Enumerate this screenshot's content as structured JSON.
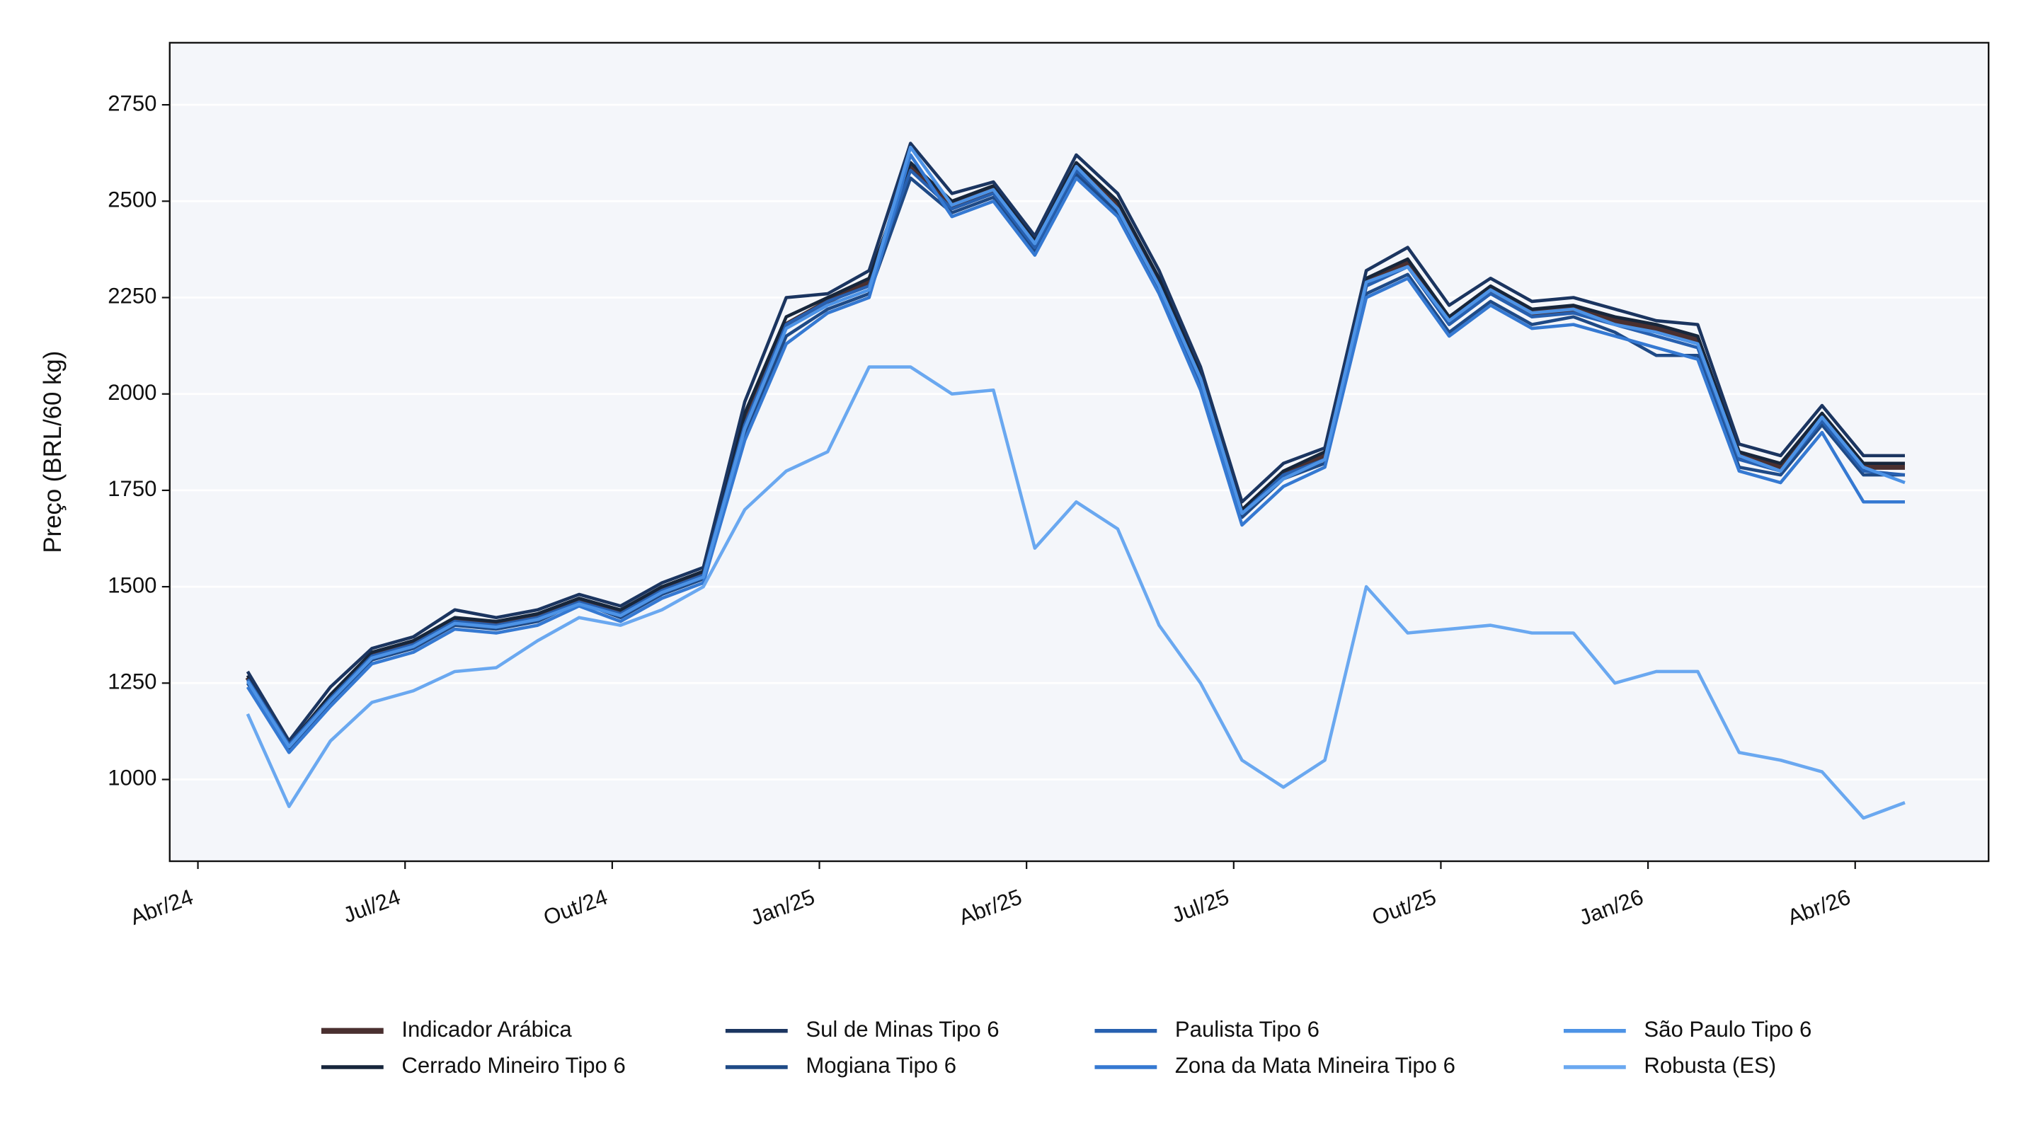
{
  "chart_data": {
    "type": "line",
    "y_label": "Preço (BRL/60 kg)",
    "xlim": [
      2024.216,
      2026.411
    ],
    "ylim": [
      788,
      2911
    ],
    "xticks": [
      {
        "value": 2024.25,
        "label": "Abr/24"
      },
      {
        "value": 2024.5,
        "label": "Jul/24"
      },
      {
        "value": 2024.75,
        "label": "Out/24"
      },
      {
        "value": 2025.0,
        "label": "Jan/25"
      },
      {
        "value": 2025.25,
        "label": "Abr/25"
      },
      {
        "value": 2025.5,
        "label": "Jul/25"
      },
      {
        "value": 2025.75,
        "label": "Out/25"
      },
      {
        "value": 2026.0,
        "label": "Jan/26"
      },
      {
        "value": 2026.25,
        "label": "Abr/26"
      }
    ],
    "yticks": [
      1000,
      1250,
      1500,
      1750,
      2000,
      2250,
      2500,
      2750
    ],
    "grid": true,
    "legend": "bottom",
    "x": [
      2024.31,
      2024.36,
      2024.41,
      2024.46,
      2024.51,
      2024.56,
      2024.61,
      2024.66,
      2024.71,
      2024.76,
      2024.81,
      2024.86,
      2024.91,
      2024.96,
      2025.01,
      2025.06,
      2025.11,
      2025.16,
      2025.21,
      2025.26,
      2025.31,
      2025.36,
      2025.41,
      2025.46,
      2025.51,
      2025.56,
      2025.61,
      2025.66,
      2025.71,
      2025.76,
      2025.81,
      2025.86,
      2025.91,
      2025.96,
      2026.01,
      2026.06,
      2026.11,
      2026.16,
      2026.21,
      2026.26,
      2026.31
    ],
    "series": [
      {
        "name": "Indicador Arábica",
        "color": "#4a3030",
        "width": 4,
        "values": [
          1265,
          1085,
          1210,
          1320,
          1350,
          1410,
          1400,
          1420,
          1465,
          1430,
          1490,
          1530,
          1930,
          2180,
          2240,
          2290,
          2590,
          2490,
          2530,
          2390,
          2590,
          2490,
          2290,
          2040,
          1690,
          1790,
          1840,
          2290,
          2340,
          2190,
          2270,
          2210,
          2220,
          2190,
          2170,
          2140,
          1840,
          1810,
          1940,
          1810,
          1810
        ]
      },
      {
        "name": "Cerrado Mineiro Tipo 6",
        "color": "#17263b",
        "width": 2.5,
        "values": [
          1270,
          1090,
          1220,
          1330,
          1360,
          1420,
          1410,
          1430,
          1470,
          1440,
          1500,
          1540,
          1950,
          2200,
          2250,
          2300,
          2600,
          2500,
          2540,
          2400,
          2600,
          2500,
          2300,
          2050,
          1700,
          1800,
          1850,
          2300,
          2350,
          2200,
          2280,
          2220,
          2230,
          2200,
          2180,
          2150,
          1850,
          1820,
          1950,
          1820,
          1820
        ]
      },
      {
        "name": "Sul de Minas Tipo 6",
        "color": "#1b3560",
        "width": 2.5,
        "values": [
          1280,
          1100,
          1240,
          1340,
          1370,
          1440,
          1420,
          1440,
          1480,
          1450,
          1510,
          1550,
          1980,
          2250,
          2260,
          2320,
          2650,
          2520,
          2550,
          2410,
          2620,
          2520,
          2320,
          2070,
          1720,
          1820,
          1860,
          2320,
          2380,
          2230,
          2300,
          2240,
          2250,
          2220,
          2190,
          2180,
          1870,
          1840,
          1970,
          1840,
          1840
        ]
      },
      {
        "name": "Mogiana Tipo 6",
        "color": "#1f4a86",
        "width": 2.5,
        "values": [
          1250,
          1080,
          1200,
          1310,
          1340,
          1400,
          1390,
          1410,
          1460,
          1420,
          1480,
          1520,
          1900,
          2150,
          2220,
          2260,
          2560,
          2470,
          2510,
          2370,
          2570,
          2470,
          2270,
          2020,
          1680,
          1780,
          1820,
          2260,
          2310,
          2160,
          2240,
          2180,
          2200,
          2160,
          2100,
          2100,
          1810,
          1790,
          1920,
          1790,
          1790
        ]
      },
      {
        "name": "Paulista Tipo 6",
        "color": "#2760b0",
        "width": 2.5,
        "values": [
          1260,
          1090,
          1210,
          1320,
          1350,
          1410,
          1400,
          1420,
          1460,
          1430,
          1490,
          1530,
          1920,
          2180,
          2240,
          2280,
          2580,
          2480,
          2520,
          2380,
          2580,
          2480,
          2280,
          2030,
          1690,
          1790,
          1830,
          2280,
          2330,
          2180,
          2260,
          2200,
          2210,
          2180,
          2150,
          2120,
          1830,
          1800,
          1930,
          1800,
          1790
        ]
      },
      {
        "name": "Zona da Mata Mineira Tipo 6",
        "color": "#3579d2",
        "width": 2.5,
        "values": [
          1240,
          1070,
          1190,
          1300,
          1330,
          1390,
          1380,
          1400,
          1450,
          1410,
          1470,
          1510,
          1880,
          2130,
          2210,
          2250,
          2620,
          2460,
          2500,
          2360,
          2560,
          2460,
          2260,
          2010,
          1660,
          1760,
          1810,
          2250,
          2300,
          2150,
          2230,
          2170,
          2180,
          2150,
          2120,
          2090,
          1800,
          1770,
          1900,
          1720,
          1720
        ]
      },
      {
        "name": "São Paulo Tipo 6",
        "color": "#4d93e6",
        "width": 2.5,
        "values": [
          1255,
          1085,
          1205,
          1315,
          1345,
          1405,
          1395,
          1415,
          1455,
          1425,
          1485,
          1525,
          1910,
          2170,
          2230,
          2270,
          2640,
          2490,
          2530,
          2390,
          2590,
          2480,
          2280,
          2040,
          1690,
          1780,
          1830,
          2290,
          2330,
          2190,
          2270,
          2210,
          2220,
          2180,
          2160,
          2130,
          1840,
          1800,
          1940,
          1810,
          1770
        ]
      },
      {
        "name": "Robusta (ES)",
        "color": "#6aa8f0",
        "width": 2.5,
        "values": [
          1170,
          930,
          1100,
          1200,
          1230,
          1280,
          1290,
          1360,
          1420,
          1400,
          1440,
          1500,
          1700,
          1800,
          1850,
          2070,
          2070,
          2000,
          2010,
          1600,
          1720,
          1650,
          1400,
          1250,
          1050,
          980,
          1050,
          1500,
          1380,
          1390,
          1400,
          1380,
          1380,
          1250,
          1280,
          1280,
          1070,
          1050,
          1020,
          900,
          940
        ]
      }
    ]
  }
}
